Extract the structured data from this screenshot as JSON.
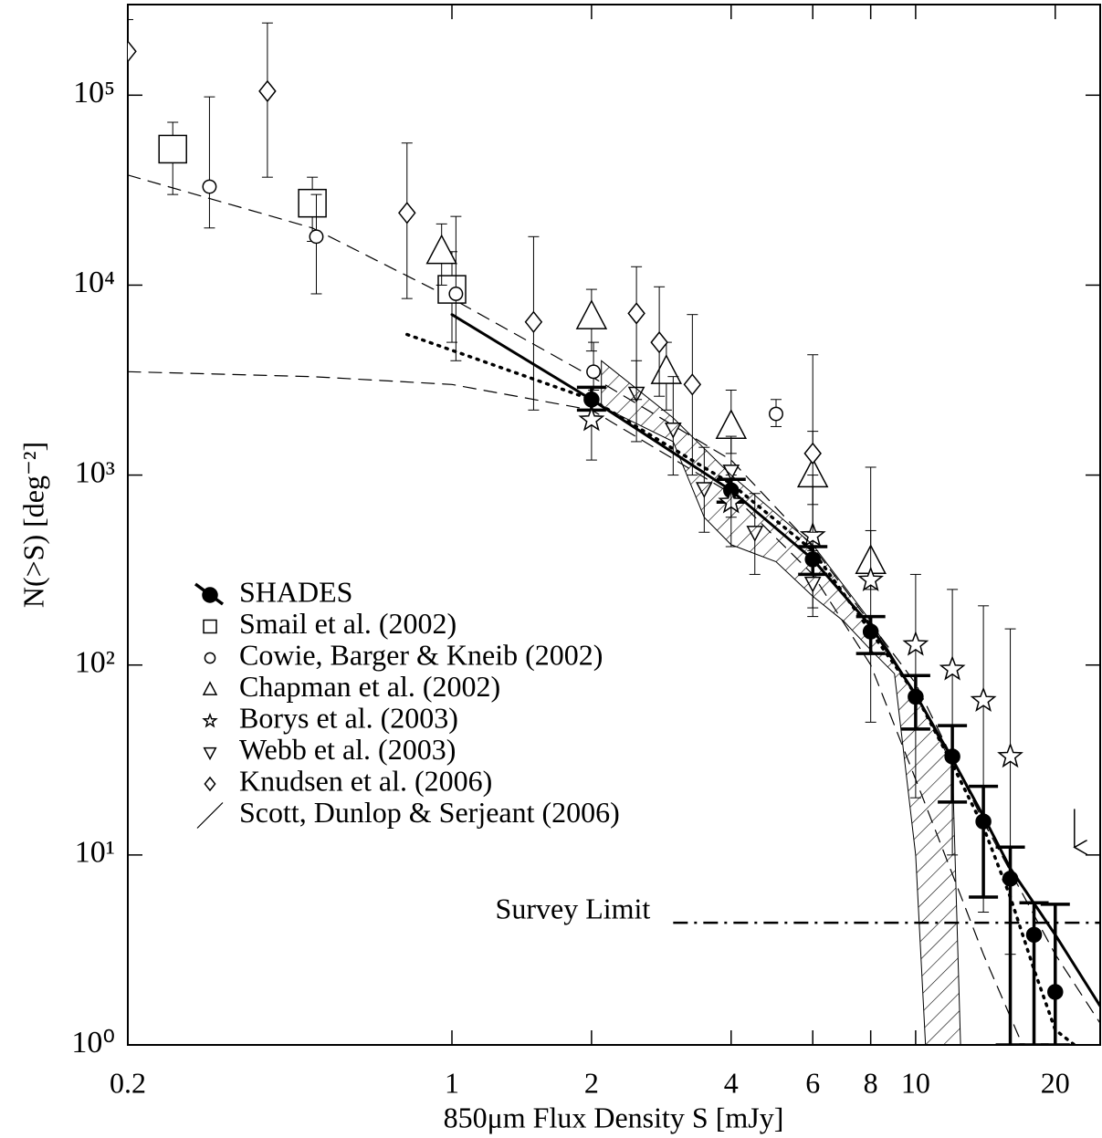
{
  "chart_data": {
    "type": "scatter",
    "log_x": true,
    "log_y": true,
    "x_label": "850μm Flux Density S [mJy]",
    "y_label": "N(>S) [deg⁻²]",
    "xlim": [
      0.2,
      25
    ],
    "ylim": [
      1,
      300000
    ],
    "xticks": [
      0.2,
      1,
      2,
      4,
      6,
      8,
      10,
      20
    ],
    "yticks": [
      {
        "value": 1,
        "label": "10⁰"
      },
      {
        "value": 10,
        "label": "10¹"
      },
      {
        "value": 100,
        "label": "10²"
      },
      {
        "value": 1000,
        "label": "10³"
      },
      {
        "value": 10000,
        "label": "10⁴"
      },
      {
        "value": 100000,
        "label": "10⁵"
      }
    ],
    "color": "#000000",
    "series": [
      {
        "name": "SHADES",
        "marker": "filled-circle",
        "line": true,
        "x": [
          2,
          4,
          6,
          8,
          10,
          12,
          14,
          16,
          18,
          20
        ],
        "y": [
          2500,
          830,
          360,
          150,
          68,
          33,
          15,
          7.5,
          3.8,
          1.9
        ],
        "lo": [
          2200,
          720,
          300,
          115,
          46,
          19,
          6,
          1,
          1,
          1
        ],
        "hi": [
          2900,
          950,
          420,
          180,
          88,
          48,
          23,
          11,
          5.6,
          5.5
        ]
      },
      {
        "name": "Smail et al. (2002)",
        "marker": "square",
        "x": [
          0.25,
          0.5,
          1.0
        ],
        "y": [
          52000,
          27000,
          9500
        ],
        "lo": [
          30000,
          17000,
          5000
        ],
        "hi": [
          72000,
          37000,
          15000
        ]
      },
      {
        "name": "Cowie, Barger & Kneib (2002)",
        "marker": "circle",
        "x": [
          0.3,
          0.51,
          1.02,
          2.02,
          5.0
        ],
        "y": [
          33000,
          18000,
          9000,
          3500,
          2100
        ],
        "lo": [
          20000,
          9000,
          4000,
          2800,
          1800
        ],
        "hi": [
          98000,
          30000,
          23000,
          5000,
          2500
        ]
      },
      {
        "name": "Chapman et al. (2002)",
        "marker": "triangle",
        "x": [
          0.95,
          2.0,
          2.9,
          4.0,
          6.0,
          8.0
        ],
        "y": [
          15000,
          6800,
          3500,
          1800,
          1000,
          350
        ],
        "lo": [
          10000,
          4500,
          2200,
          1300,
          700,
          250
        ],
        "hi": [
          21000,
          9500,
          5000,
          2800,
          1700,
          510
        ]
      },
      {
        "name": "Borys et al. (2003)",
        "marker": "star",
        "x": [
          2,
          4,
          6,
          8,
          10,
          12,
          14,
          16
        ],
        "y": [
          1950,
          720,
          480,
          280,
          128,
          95,
          65,
          33
        ],
        "lo": [
          1200,
          420,
          200,
          50,
          20,
          10,
          5,
          3
        ],
        "hi": [
          2500,
          1000,
          1000,
          1100,
          300,
          250,
          205,
          155
        ]
      },
      {
        "name": "Webb et al. (2003)",
        "marker": "down-triangle",
        "x": [
          2.5,
          3.0,
          3.5,
          4.0,
          4.5,
          6.0
        ],
        "y": [
          2700,
          1750,
          850,
          1050,
          500,
          270
        ],
        "lo": [
          1500,
          1000,
          500,
          600,
          300,
          180
        ],
        "hi": [
          4000,
          3300,
          1400,
          1600,
          800,
          400
        ]
      },
      {
        "name": "Knudsen et al. (2006)",
        "marker": "diamond",
        "x": [
          0.2,
          0.4,
          0.8,
          1.5,
          2.5,
          2.8,
          3.3,
          6.0
        ],
        "y": [
          170000,
          105000,
          24000,
          6400,
          7100,
          5000,
          3000,
          1300
        ],
        "lo": [
          100000,
          37000,
          8500,
          2200,
          2500,
          2600,
          1000,
          500
        ],
        "hi": [
          250000,
          240000,
          56000,
          18000,
          12500,
          9800,
          7000,
          4300
        ]
      },
      {
        "name": "Scott, Dunlop & Serjeant (2006)",
        "marker": "hatch",
        "x": [
          2.1,
          3,
          4,
          6,
          8,
          10,
          12,
          12.5,
          10.5,
          10,
          9,
          8,
          7,
          6,
          5,
          4,
          3.5,
          3,
          2.1
        ],
        "y": [
          4000,
          2000,
          1000,
          430,
          170,
          70,
          30,
          1,
          1,
          10,
          90,
          120,
          170,
          230,
          350,
          430,
          600,
          1500,
          2300
        ]
      }
    ],
    "curves": [
      {
        "style": "solid",
        "x": [
          1,
          2,
          4,
          6,
          8,
          10,
          12,
          14,
          16,
          20,
          25
        ],
        "y": [
          7000,
          2500,
          830,
          360,
          160,
          70,
          32,
          16,
          8.5,
          3.8,
          1.6
        ]
      },
      {
        "style": "dotted",
        "x": [
          0.8,
          2,
          4,
          6,
          8,
          10,
          12,
          14,
          16,
          18,
          20,
          22
        ],
        "y": [
          5500,
          2500,
          900,
          400,
          150,
          70,
          30,
          14,
          6,
          2.5,
          1.2,
          1
        ]
      },
      {
        "style": "dashed",
        "x": [
          0.2,
          0.5,
          1,
          2,
          4,
          6,
          10,
          14,
          20,
          25
        ],
        "y": [
          38000,
          20000,
          8500,
          3300,
          1200,
          420,
          80,
          15,
          3,
          1.3
        ]
      },
      {
        "style": "dashed",
        "x": [
          0.2,
          0.5,
          1,
          2,
          4,
          6,
          8,
          10,
          14,
          17
        ],
        "y": [
          3500,
          3300,
          3000,
          2200,
          800,
          300,
          100,
          25,
          3,
          1
        ]
      }
    ],
    "survey_limit": {
      "text": "Survey Limit",
      "y": 4.4,
      "x": [
        3,
        25
      ]
    },
    "upper_limit": {
      "x": 22,
      "y": 14
    }
  }
}
